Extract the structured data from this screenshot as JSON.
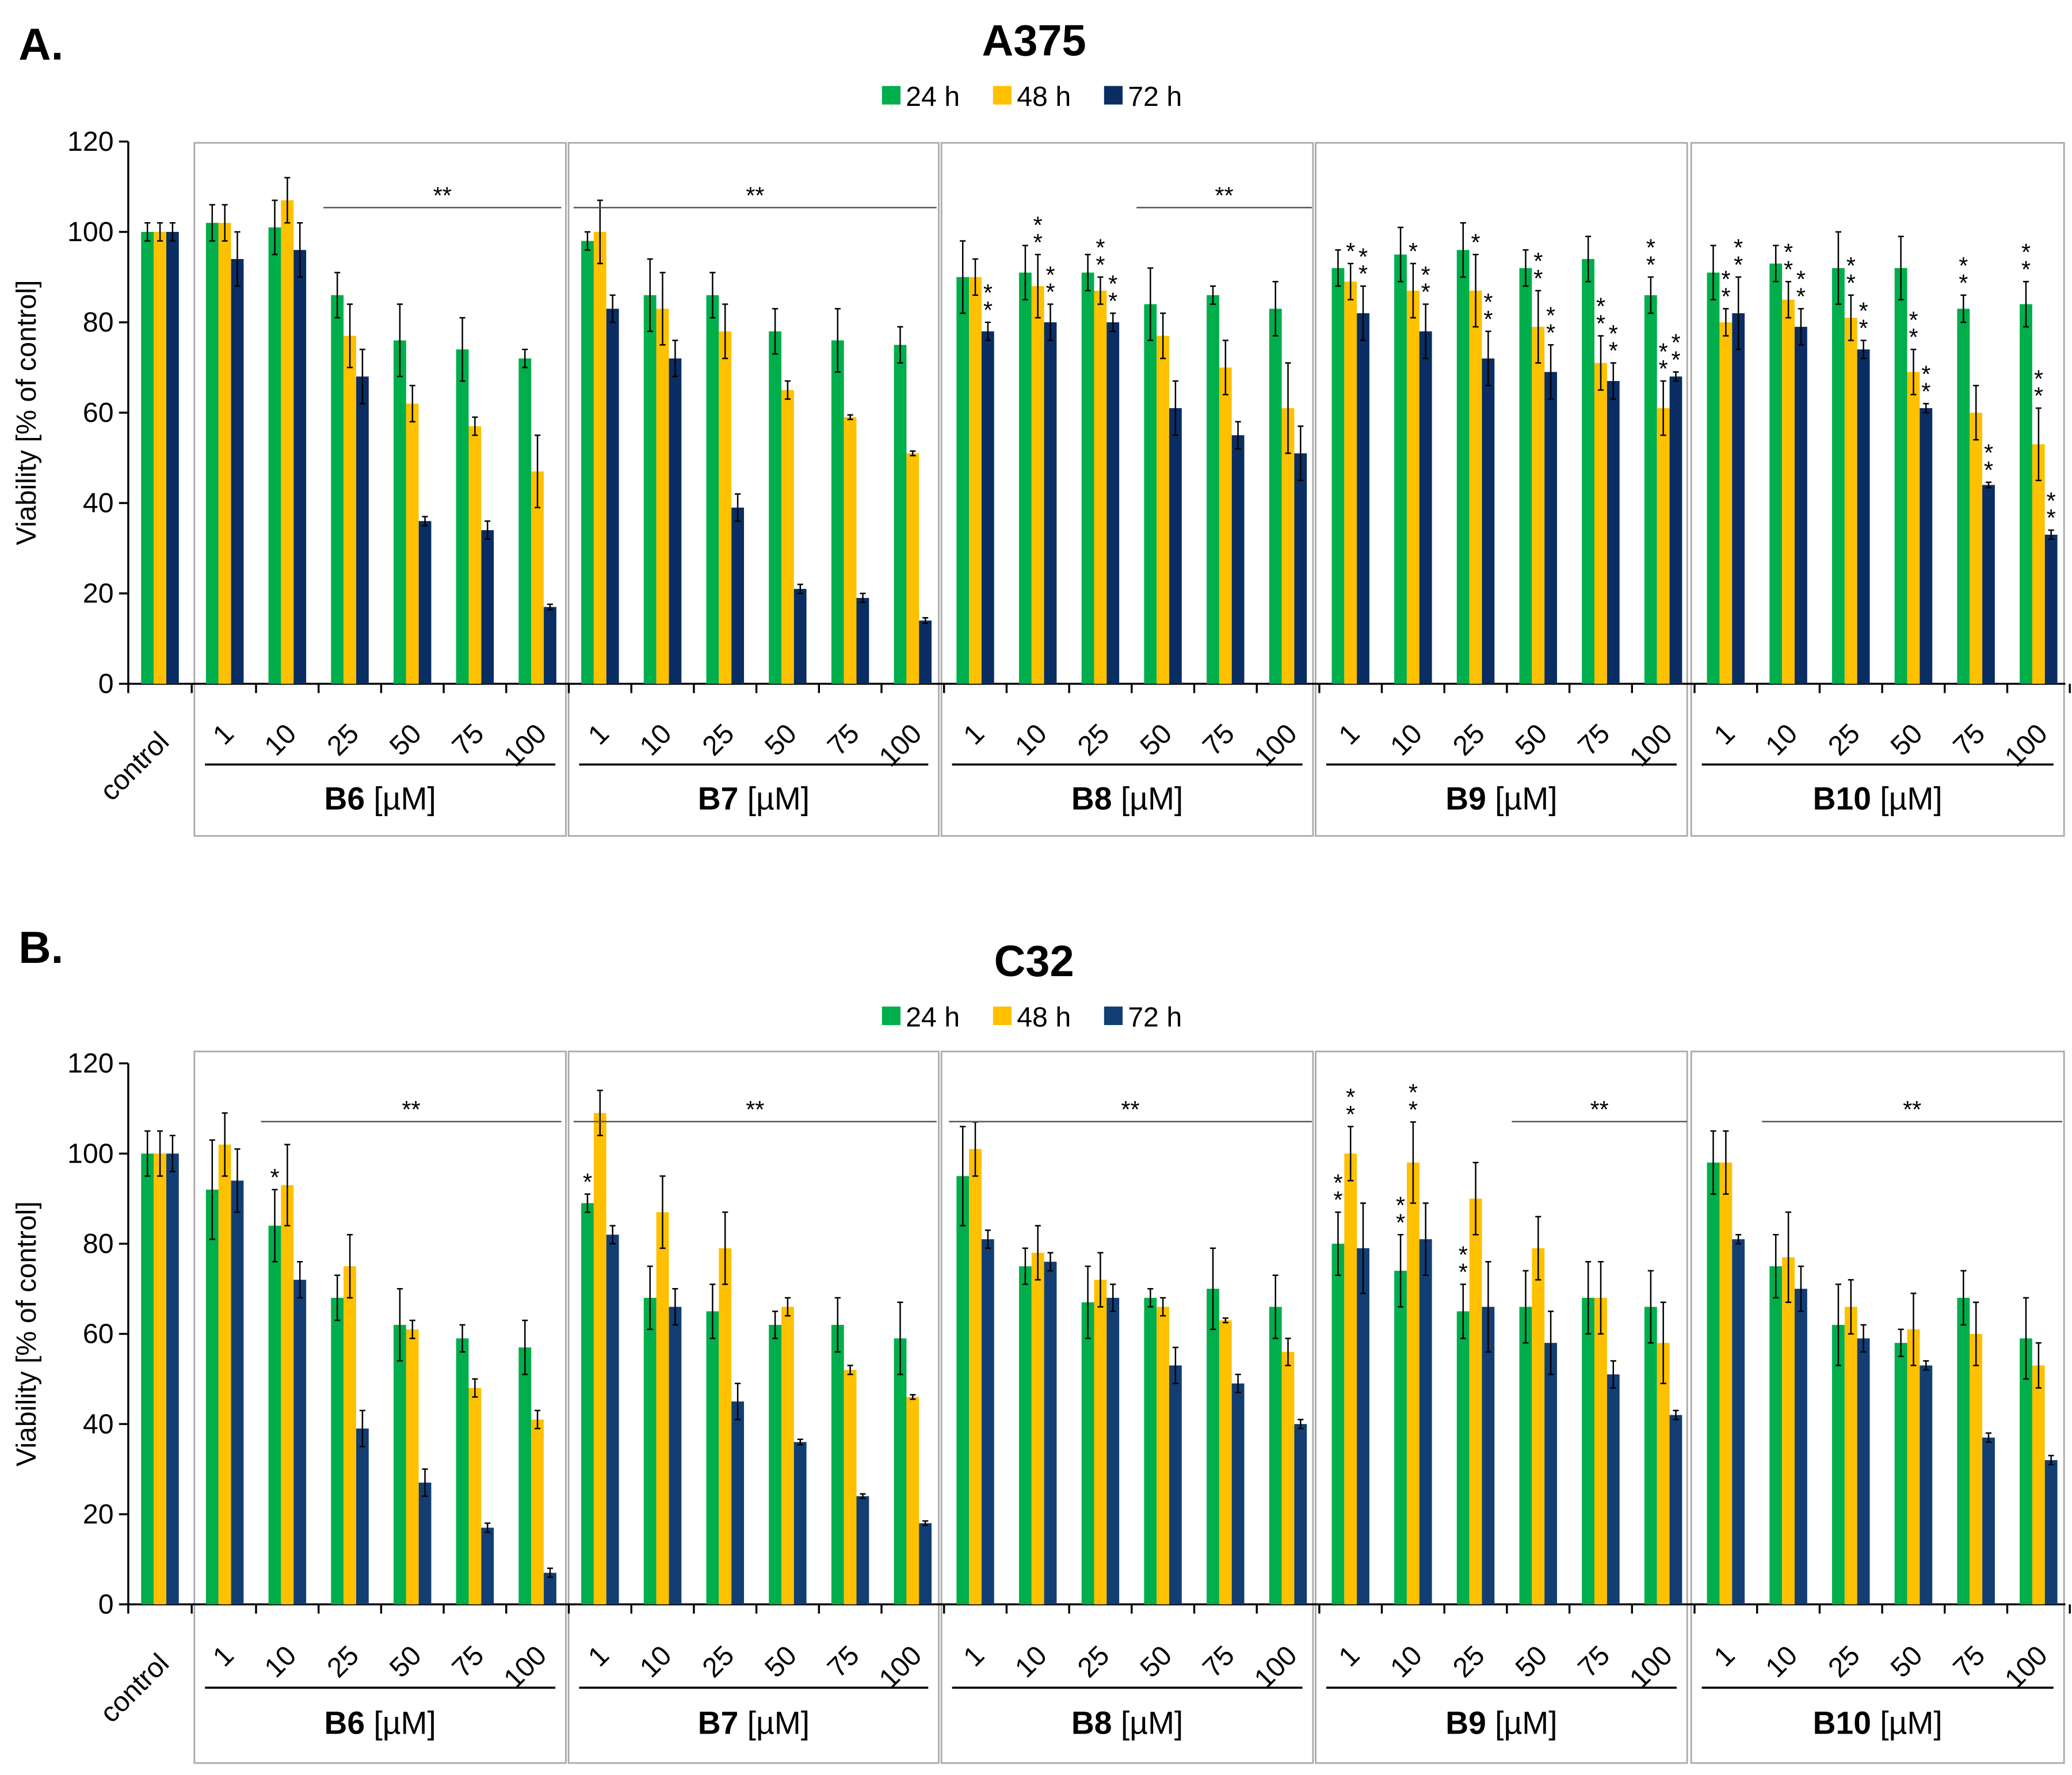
{
  "figure": {
    "legend_position": "top-center"
  },
  "colors": {
    "24h": "#00AE4C",
    "48h": "#FFC000",
    "72h": "#0A2D63",
    "72h_panel_b": "#123E73",
    "axis": "#000000",
    "group_box": "#AAAAAA",
    "error_bar": "#000000"
  },
  "chart_data": [
    {
      "type": "bar",
      "panel_label": "A.",
      "title": "A375",
      "xlabel": "",
      "ylabel": "Viability [% of control]",
      "ylim": [
        0,
        120
      ],
      "yticks": [
        "0",
        "20",
        "40",
        "60",
        "80",
        "100",
        "120"
      ],
      "legend": [
        "24 h",
        "48 h",
        "72 h"
      ],
      "control_label": "control",
      "unit_label": "[µM]",
      "series_names": [
        "24 h",
        "48 h",
        "72 h"
      ],
      "control": {
        "values": [
          100,
          100,
          100
        ],
        "errors": [
          2,
          2,
          2
        ]
      },
      "groups": [
        {
          "name": "B6",
          "concentrations": [
            "1",
            "10",
            "25",
            "50",
            "75",
            "100"
          ],
          "values": [
            [
              102,
              102,
              94
            ],
            [
              101,
              107,
              96
            ],
            [
              86,
              77,
              68
            ],
            [
              76,
              62,
              36
            ],
            [
              74,
              57,
              34
            ],
            [
              72,
              47,
              17
            ]
          ],
          "errors": [
            [
              4,
              4,
              6
            ],
            [
              6,
              5,
              6
            ],
            [
              5,
              7,
              6
            ],
            [
              8,
              4,
              1
            ],
            [
              7,
              2,
              2
            ],
            [
              2,
              8,
              0.6
            ]
          ],
          "stars": [
            "",
            "",
            "",
            "",
            "",
            "",
            "",
            "",
            "",
            "",
            "",
            "",
            "",
            "",
            "",
            "",
            "",
            ""
          ],
          "sig_bar": {
            "from_index": 2,
            "to_index": 5,
            "label": "**"
          }
        },
        {
          "name": "B7",
          "concentrations": [
            "1",
            "10",
            "25",
            "50",
            "75",
            "100"
          ],
          "values": [
            [
              98,
              100,
              83
            ],
            [
              86,
              83,
              72
            ],
            [
              86,
              78,
              39
            ],
            [
              78,
              65,
              21
            ],
            [
              76,
              59,
              19
            ],
            [
              75,
              51,
              14
            ]
          ],
          "errors": [
            [
              2,
              7,
              3
            ],
            [
              8,
              8,
              4
            ],
            [
              5,
              6,
              3
            ],
            [
              5,
              2,
              1
            ],
            [
              7,
              0.5,
              1
            ],
            [
              4,
              0.5,
              0.6
            ]
          ],
          "stars": [
            "",
            "",
            "",
            "",
            "",
            "",
            "",
            "",
            "",
            "",
            "",
            "",
            "",
            "",
            "",
            "",
            "",
            ""
          ],
          "sig_bar": {
            "from_index": 0,
            "to_index": 5,
            "label": "**"
          }
        },
        {
          "name": "B8",
          "concentrations": [
            "1",
            "10",
            "25",
            "50",
            "75",
            "100"
          ],
          "values": [
            [
              90,
              90,
              78
            ],
            [
              91,
              88,
              80
            ],
            [
              91,
              87,
              80
            ],
            [
              84,
              77,
              61
            ],
            [
              86,
              70,
              55
            ],
            [
              83,
              61,
              51
            ]
          ],
          "errors": [
            [
              8,
              4,
              2
            ],
            [
              6,
              7,
              4
            ],
            [
              4,
              3,
              2
            ],
            [
              8,
              5,
              6
            ],
            [
              2,
              6,
              3
            ],
            [
              6,
              10,
              6
            ]
          ],
          "stars": [
            "",
            "",
            "**",
            "",
            "**",
            "**",
            "",
            "**",
            "**",
            "",
            "",
            "",
            "",
            "",
            "",
            "",
            "",
            ""
          ],
          "sig_bar": {
            "from_index": 3,
            "to_index": 5,
            "label": "**"
          }
        },
        {
          "name": "B9",
          "concentrations": [
            "1",
            "10",
            "25",
            "50",
            "75",
            "100"
          ],
          "values": [
            [
              92,
              89,
              82
            ],
            [
              95,
              87,
              78
            ],
            [
              96,
              87,
              72
            ],
            [
              92,
              79,
              69
            ],
            [
              94,
              71,
              67
            ],
            [
              86,
              61,
              68
            ]
          ],
          "errors": [
            [
              4,
              4,
              6
            ],
            [
              6,
              6,
              6
            ],
            [
              6,
              8,
              6
            ],
            [
              4,
              8,
              6
            ],
            [
              5,
              6,
              4
            ],
            [
              4,
              6,
              1
            ]
          ],
          "stars": [
            "",
            "*",
            "**",
            "",
            "*",
            "**",
            "",
            "*",
            "**",
            "",
            "**",
            "**",
            "",
            "**",
            "**",
            "**",
            "**",
            "**"
          ],
          "sig_bar": null
        },
        {
          "name": "B10",
          "concentrations": [
            "1",
            "10",
            "25",
            "50",
            "75",
            "100"
          ],
          "values": [
            [
              91,
              80,
              82
            ],
            [
              93,
              85,
              79
            ],
            [
              92,
              81,
              74
            ],
            [
              92,
              69,
              61
            ],
            [
              83,
              60,
              44
            ],
            [
              84,
              53,
              33
            ]
          ],
          "errors": [
            [
              6,
              3,
              8
            ],
            [
              4,
              4,
              4
            ],
            [
              8,
              5,
              2
            ],
            [
              7,
              5,
              1
            ],
            [
              3,
              6,
              0.6
            ],
            [
              5,
              8,
              1
            ]
          ],
          "stars": [
            "",
            "**",
            "**",
            "",
            "**",
            "**",
            "",
            "**",
            "**",
            "",
            "**",
            "**",
            "**",
            "",
            "**",
            "**",
            "**",
            "**"
          ],
          "sig_bar": null
        }
      ]
    },
    {
      "type": "bar",
      "panel_label": "B.",
      "title": "C32",
      "xlabel": "",
      "ylabel": "Viability [% of control]",
      "ylim": [
        0,
        120
      ],
      "yticks": [
        "0",
        "20",
        "40",
        "60",
        "80",
        "100",
        "120"
      ],
      "legend": [
        "24 h",
        "48 h",
        "72 h"
      ],
      "control_label": "control",
      "unit_label": "[µM]",
      "series_names": [
        "24 h",
        "48 h",
        "72 h"
      ],
      "control": {
        "values": [
          100,
          100,
          100
        ],
        "errors": [
          5,
          5,
          4
        ]
      },
      "groups": [
        {
          "name": "B6",
          "concentrations": [
            "1",
            "10",
            "25",
            "50",
            "75",
            "100"
          ],
          "values": [
            [
              92,
              102,
              94
            ],
            [
              84,
              93,
              72
            ],
            [
              68,
              75,
              39
            ],
            [
              62,
              61,
              27
            ],
            [
              59,
              48,
              17
            ],
            [
              57,
              41,
              7
            ]
          ],
          "errors": [
            [
              11,
              7,
              7
            ],
            [
              8,
              9,
              4
            ],
            [
              5,
              7,
              4
            ],
            [
              8,
              2,
              3
            ],
            [
              3,
              2,
              1
            ],
            [
              6,
              2,
              1
            ]
          ],
          "stars": [
            "",
            "",
            "",
            "*",
            "",
            "",
            "",
            "",
            "",
            "",
            "",
            "",
            "",
            "",
            "",
            "",
            "",
            ""
          ],
          "sig_bar": {
            "from_index": 1,
            "to_index": 5,
            "label": "**"
          }
        },
        {
          "name": "B7",
          "concentrations": [
            "1",
            "10",
            "25",
            "50",
            "75",
            "100"
          ],
          "values": [
            [
              89,
              109,
              82
            ],
            [
              68,
              87,
              66
            ],
            [
              65,
              79,
              45
            ],
            [
              62,
              66,
              36
            ],
            [
              62,
              52,
              24
            ],
            [
              59,
              46,
              18
            ]
          ],
          "errors": [
            [
              2,
              5,
              2
            ],
            [
              7,
              8,
              4
            ],
            [
              6,
              8,
              4
            ],
            [
              3,
              2,
              0.6
            ],
            [
              6,
              1,
              0.5
            ],
            [
              8,
              0.5,
              0.5
            ]
          ],
          "stars": [
            "*",
            "",
            "",
            "",
            "",
            "",
            "",
            "",
            "",
            "",
            "",
            "",
            "",
            "",
            "",
            "",
            "",
            ""
          ],
          "sig_bar": {
            "from_index": 0,
            "to_index": 5,
            "label": "**"
          }
        },
        {
          "name": "B8",
          "concentrations": [
            "1",
            "10",
            "25",
            "50",
            "75",
            "100"
          ],
          "values": [
            [
              95,
              101,
              81
            ],
            [
              75,
              78,
              76
            ],
            [
              67,
              72,
              68
            ],
            [
              68,
              66,
              53
            ],
            [
              70,
              63,
              49
            ],
            [
              66,
              56,
              40
            ]
          ],
          "errors": [
            [
              11,
              6,
              2
            ],
            [
              4,
              6,
              2
            ],
            [
              8,
              6,
              3
            ],
            [
              2,
              2,
              4
            ],
            [
              9,
              0.5,
              2
            ],
            [
              7,
              3,
              1
            ]
          ],
          "stars": [
            "",
            "",
            "",
            "",
            "",
            "",
            "",
            "",
            "",
            "",
            "",
            "",
            "",
            "",
            "",
            "",
            "",
            ""
          ],
          "sig_bar": {
            "from_index": 0,
            "to_index": 5,
            "label": "**"
          }
        },
        {
          "name": "B9",
          "concentrations": [
            "1",
            "10",
            "25",
            "50",
            "75",
            "100"
          ],
          "values": [
            [
              80,
              100,
              79
            ],
            [
              74,
              98,
              81
            ],
            [
              65,
              90,
              66
            ],
            [
              66,
              79,
              58
            ],
            [
              68,
              68,
              51
            ],
            [
              66,
              58,
              42
            ]
          ],
          "errors": [
            [
              7,
              6,
              10
            ],
            [
              8,
              9,
              8
            ],
            [
              6,
              8,
              10
            ],
            [
              8,
              7,
              7
            ],
            [
              8,
              8,
              3
            ],
            [
              8,
              9,
              1
            ]
          ],
          "stars": [
            "**",
            "**",
            "",
            "**",
            "**",
            "",
            "**",
            "",
            "",
            "",
            "",
            "",
            "",
            "",
            "",
            "",
            "",
            ""
          ],
          "sig_bar": {
            "from_index": 3,
            "to_index": 5,
            "label": "**"
          }
        },
        {
          "name": "B10",
          "concentrations": [
            "1",
            "10",
            "25",
            "50",
            "75",
            "100"
          ],
          "values": [
            [
              98,
              98,
              81
            ],
            [
              75,
              77,
              70
            ],
            [
              62,
              66,
              59
            ],
            [
              58,
              61,
              53
            ],
            [
              68,
              60,
              37
            ],
            [
              59,
              53,
              32
            ]
          ],
          "errors": [
            [
              7,
              7,
              1
            ],
            [
              7,
              10,
              5
            ],
            [
              9,
              6,
              3
            ],
            [
              3,
              8,
              1
            ],
            [
              6,
              7,
              1
            ],
            [
              9,
              5,
              1
            ]
          ],
          "stars": [
            "",
            "",
            "",
            "",
            "",
            "",
            "",
            "",
            "",
            "",
            "",
            "",
            "",
            "",
            "",
            "",
            "",
            ""
          ],
          "sig_bar": {
            "from_index": 1,
            "to_index": 5,
            "label": "**"
          }
        }
      ]
    }
  ]
}
